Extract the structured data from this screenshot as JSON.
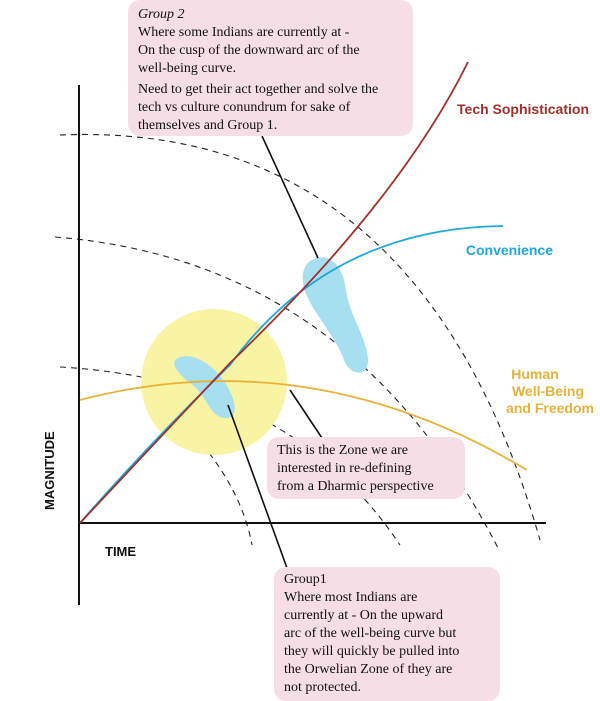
{
  "colors": {
    "tech": "#a3302a",
    "convenience": "#1ea7e0",
    "wellbeing": "#e8b23a",
    "zone_fill": "#f8f4a4",
    "cluster_fill": "#a6dff0",
    "callout_bg": "#f6dde6",
    "axis": "#111111"
  },
  "axes": {
    "x_label": "TIME",
    "y_label": "MAGNITUDE"
  },
  "curves": {
    "tech_label": "Tech Sophistication",
    "convenience_label": "Convenience",
    "wellbeing_label_lines": [
      "Human",
      "Well-Being",
      "and Freedom"
    ]
  },
  "callouts": {
    "group2": {
      "title": "Group 2",
      "lines": [
        "Where some Indians are currently at -",
        "On the cusp of the downward arc of the",
        "well-being curve."
      ],
      "lines2": [
        "Need to get their act together and solve the",
        "tech vs culture conundrum for sake of",
        "themselves and Group 1."
      ]
    },
    "zone": {
      "lines": [
        "This is the Zone we are",
        "interested in re-defining",
        "from a Dharmic perspective"
      ]
    },
    "group1": {
      "lines": [
        "Group1",
        "Where most Indians are",
        "currently at - On the upward",
        "arc of the well-being curve but",
        "they will quickly be pulled into",
        "the Orwelian Zone of they are",
        "not protected."
      ]
    }
  }
}
